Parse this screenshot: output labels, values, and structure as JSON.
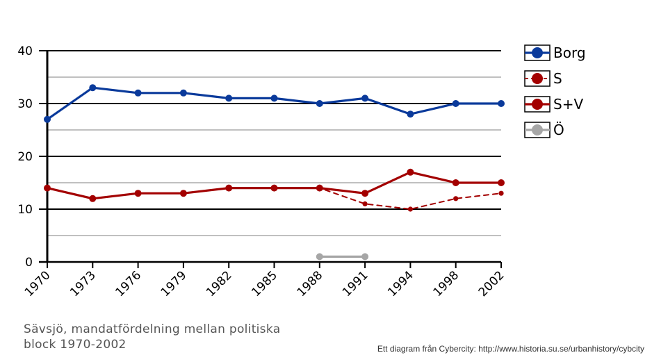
{
  "chart_data": {
    "type": "line",
    "title": "Sävsjö, mandatfördelning mellan politiska block 1970-2002",
    "xlabel": "",
    "ylabel": "",
    "categories": [
      "1970",
      "1973",
      "1976",
      "1979",
      "1982",
      "1985",
      "1988",
      "1991",
      "1994",
      "1998",
      "2002"
    ],
    "ylim": [
      0,
      40
    ],
    "yticks": [
      0,
      10,
      20,
      30,
      40
    ],
    "grid": true,
    "legend_position": "right",
    "series": [
      {
        "name": "Borg",
        "color": "#0a3a9b",
        "dashed": false,
        "values": [
          27,
          33,
          32,
          32,
          31,
          31,
          30,
          31,
          28,
          30,
          30
        ]
      },
      {
        "name": "S",
        "color": "#a30000",
        "dashed": true,
        "values": [
          14,
          12,
          13,
          13,
          14,
          14,
          14,
          11,
          10,
          12,
          13
        ]
      },
      {
        "name": "S+V",
        "color": "#a30000",
        "dashed": false,
        "values": [
          14,
          12,
          13,
          13,
          14,
          14,
          14,
          13,
          17,
          15,
          15
        ]
      },
      {
        "name": "Ö",
        "color": "#a6a6a6",
        "dashed": false,
        "values": [
          null,
          null,
          null,
          null,
          null,
          null,
          1,
          1,
          null,
          null,
          null
        ]
      }
    ]
  },
  "caption": "Sävsjö, mandatfördelning mellan politiska block 1970-2002",
  "credit": "Ett diagram från Cybercity: http://www.historia.su.se/urbanhistory/cybcity"
}
